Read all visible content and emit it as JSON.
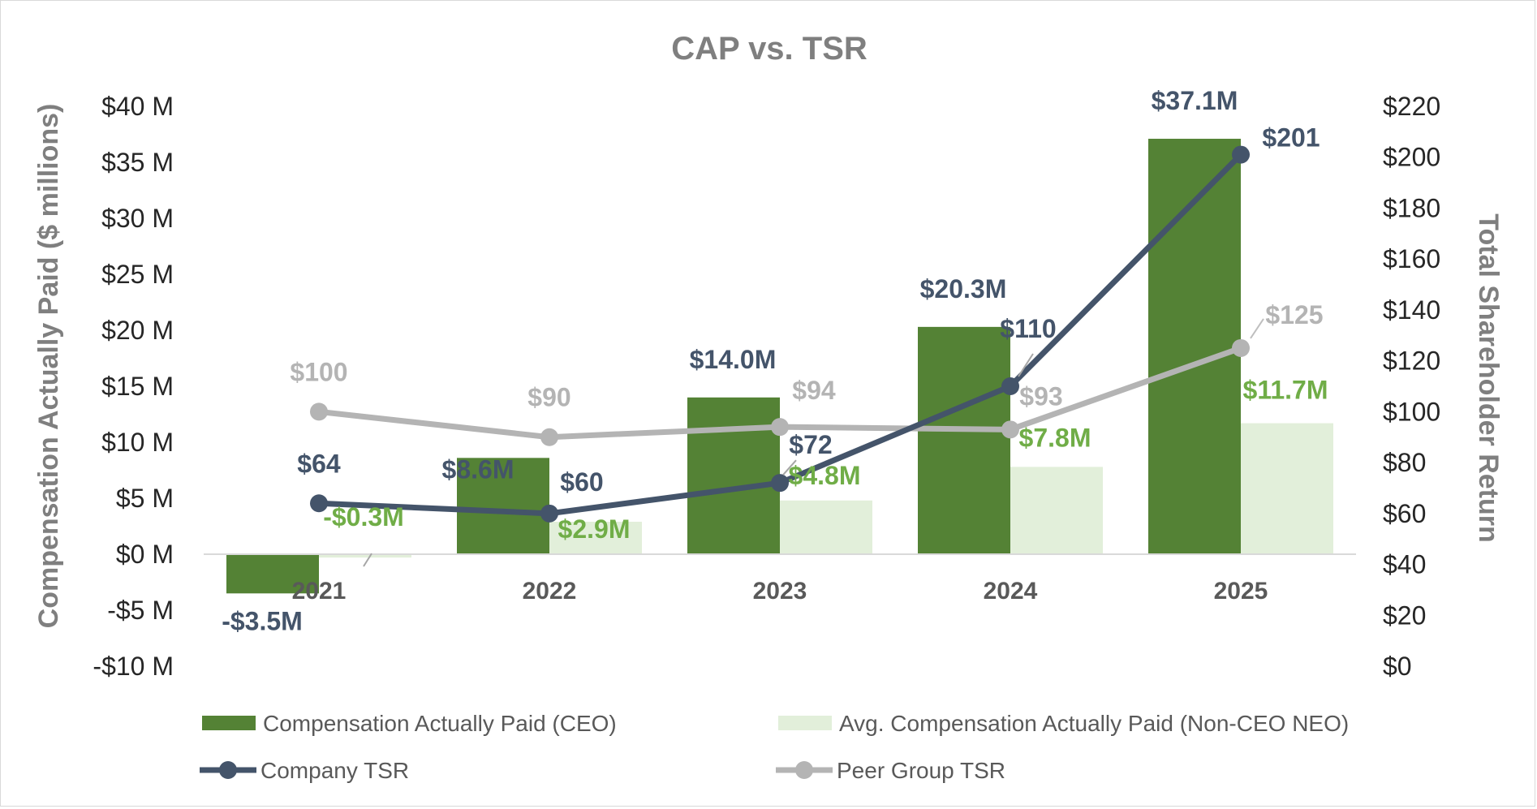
{
  "chart_data": {
    "type": "bar",
    "title": "CAP vs. TSR",
    "categories": [
      "2021",
      "2022",
      "2023",
      "2024",
      "2025"
    ],
    "y_left": {
      "label": "Compensation Actually Paid ($ millions)",
      "range": [
        -10,
        40
      ],
      "ticks": [
        40,
        35,
        30,
        25,
        20,
        15,
        10,
        5,
        0,
        -5,
        -10
      ],
      "tick_labels": [
        "$40 M",
        "$35 M",
        "$30 M",
        "$25 M",
        "$20 M",
        "$15 M",
        "$10 M",
        "$5 M",
        "$0 M",
        "-$5 M",
        "-$10 M"
      ]
    },
    "y_right": {
      "label": "Total Shareholder Return",
      "range": [
        0,
        220
      ],
      "ticks": [
        220,
        200,
        180,
        160,
        140,
        120,
        100,
        80,
        60,
        40,
        20,
        0
      ],
      "tick_labels": [
        "$220",
        "$200",
        "$180",
        "$160",
        "$140",
        "$120",
        "$100",
        "$80",
        "$60",
        "$40",
        "$20",
        "$0"
      ]
    },
    "series": [
      {
        "name": "Compensation Actually Paid (CEO)",
        "kind": "bar",
        "axis": "left",
        "color": "#548235",
        "label_color": "#44546a",
        "values": [
          -3.5,
          8.6,
          14.0,
          20.3,
          37.1
        ],
        "labels": [
          "-$3.5M",
          "$8.6M",
          "$14.0M",
          "$20.3M",
          "$37.1M"
        ]
      },
      {
        "name": "Avg. Compensation Actually Paid (Non-CEO NEO)",
        "kind": "bar",
        "axis": "left",
        "color": "#e2efda",
        "label_color": "#70ad47",
        "values": [
          -0.3,
          2.9,
          4.8,
          7.8,
          11.7
        ],
        "labels": [
          "-$0.3M",
          "$2.9M",
          "$4.8M",
          "$7.8M",
          "$11.7M"
        ]
      },
      {
        "name": "Company TSR",
        "kind": "line",
        "axis": "right",
        "color": "#44546a",
        "label_color": "#44546a",
        "values": [
          64,
          60,
          72,
          110,
          201
        ],
        "labels": [
          "$64",
          "$60",
          "$72",
          "$110",
          "$201"
        ]
      },
      {
        "name": "Peer Group TSR",
        "kind": "line",
        "axis": "right",
        "color": "#b4b4b4",
        "label_color": "#b4b4b4",
        "values": [
          100,
          90,
          94,
          93,
          125
        ],
        "labels": [
          "$100",
          "$90",
          "$94",
          "$93",
          "$125"
        ]
      }
    ],
    "legend_position": "bottom",
    "grid": false
  }
}
